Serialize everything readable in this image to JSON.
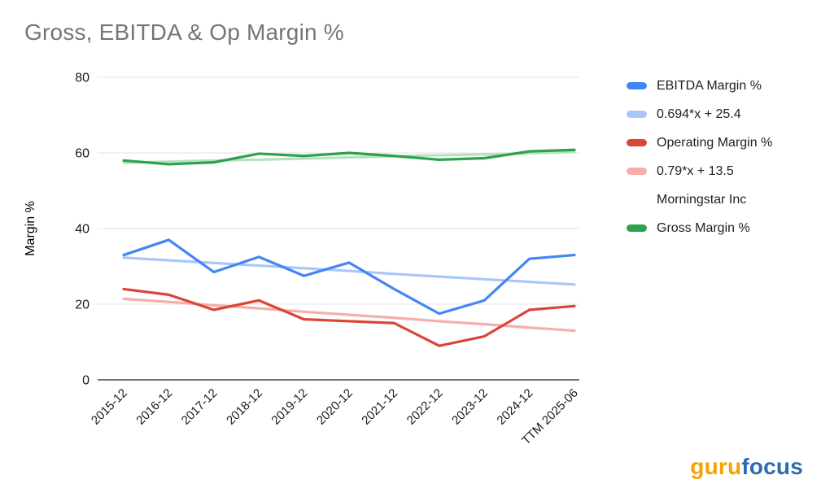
{
  "title": "Gross, EBITDA & Op Margin %",
  "branding": {
    "guru": "guru",
    "focus": "focus"
  },
  "chart_data": {
    "type": "line",
    "title": "Gross, EBITDA & Op Margin %",
    "xlabel": "",
    "ylabel": "Margin %",
    "ylim": [
      0,
      80
    ],
    "yticks": [
      0,
      20,
      40,
      60,
      80
    ],
    "grid": true,
    "legend_position": "right",
    "categories": [
      "2015-12",
      "2016-12",
      "2017-12",
      "2018-12",
      "2019-12",
      "2020-12",
      "2021-12",
      "2022-12",
      "2023-12",
      "2024-12",
      "TTM 2025-06"
    ],
    "series": [
      {
        "name": "0.694*x + 25.4",
        "role": "trend",
        "color": "#a7c7fa",
        "values": [
          32.3,
          31.6,
          30.9,
          30.2,
          29.5,
          28.8,
          28.0,
          27.3,
          26.6,
          25.9,
          25.2
        ]
      },
      {
        "name": "0.79*x + 13.5",
        "role": "trend",
        "color": "#f5afa8",
        "values": [
          21.4,
          20.6,
          19.7,
          18.9,
          18.0,
          17.2,
          16.4,
          15.5,
          14.7,
          13.8,
          13.0
        ]
      },
      {
        "name": "Morningstar Inc",
        "role": "trend",
        "color": "#b8e0c2",
        "values": [
          57.4,
          57.7,
          58.0,
          58.2,
          58.5,
          58.8,
          59.1,
          59.4,
          59.6,
          59.9,
          60.2
        ]
      },
      {
        "name": "EBITDA Margin %",
        "role": "main",
        "color": "#4285f4",
        "values": [
          33,
          37,
          28.5,
          32.5,
          27.5,
          31,
          24,
          17.5,
          21,
          32,
          33
        ]
      },
      {
        "name": "Operating Margin %",
        "role": "main",
        "color": "#db4437",
        "values": [
          24,
          22.5,
          18.5,
          21,
          16,
          15.5,
          15,
          9,
          11.5,
          18.5,
          19.5
        ]
      },
      {
        "name": "Gross Margin %",
        "role": "main",
        "color": "#2da14c",
        "values": [
          58,
          57,
          57.5,
          59.8,
          59.2,
          60,
          59.2,
          58.2,
          58.6,
          60.4,
          60.8
        ]
      }
    ],
    "legend": [
      {
        "label": "EBITDA Margin %",
        "color": "#4285f4"
      },
      {
        "label": "0.694*x + 25.4",
        "color": "#a7c7fa"
      },
      {
        "label": "Operating Margin %",
        "color": "#db4437"
      },
      {
        "label": "0.79*x + 13.5",
        "color": "#f5afa8"
      },
      {
        "label": "Morningstar Inc",
        "color": null
      },
      {
        "label": "Gross Margin %",
        "color": "#2da14c"
      }
    ],
    "colors": {
      "grid": "#e3e3e3",
      "axis": "#444444",
      "tick_text": "#1a1a1a",
      "title_text": "#757575"
    }
  }
}
